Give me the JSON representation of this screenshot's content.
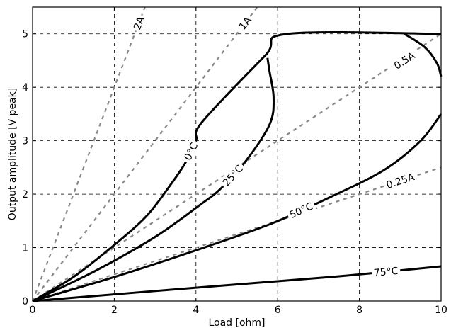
{
  "chart_data": {
    "type": "line",
    "title": "",
    "xlabel": "Load [ohm]",
    "ylabel": "Output amplitude [V peak]",
    "xlim": [
      0,
      10
    ],
    "ylim": [
      0,
      5.5
    ],
    "xticks": [
      0,
      2,
      4,
      6,
      8,
      10
    ],
    "yticks": [
      0,
      1,
      2,
      3,
      4,
      5
    ],
    "xtick_labels": [
      "0",
      "2",
      "4",
      "6",
      "8",
      "10"
    ],
    "ytick_labels": [
      "0",
      "1",
      "2",
      "3",
      "4",
      "5"
    ],
    "grid": true,
    "legend": "none",
    "current_lines": [
      {
        "name": "2A",
        "slope": 2.0,
        "label": "2A",
        "label_at": [
          2.6,
          5.2
        ],
        "color": "#888888"
      },
      {
        "name": "1A",
        "slope": 1.0,
        "label": "1A",
        "label_at": [
          5.2,
          5.2
        ],
        "color": "#888888"
      },
      {
        "name": "0.5A",
        "slope": 0.5,
        "label": "0.5A",
        "label_at": [
          9.1,
          4.5
        ],
        "color": "#888888"
      },
      {
        "name": "0.25A",
        "slope": 0.25,
        "label": "0.25A",
        "label_at": [
          9.0,
          2.25
        ],
        "color": "#888888"
      }
    ],
    "temperature_curves": [
      {
        "name": "0°C",
        "label": "0°C",
        "label_index": 5,
        "color": "#000000",
        "points": [
          [
            0,
            0
          ],
          [
            1,
            0.45
          ],
          [
            2,
            1.05
          ],
          [
            2.8,
            1.6
          ],
          [
            3.4,
            2.2
          ],
          [
            3.75,
            2.6
          ],
          [
            4.0,
            3.0
          ],
          [
            4.15,
            3.35
          ],
          [
            5.7,
            4.6
          ],
          [
            6.25,
            5.0
          ],
          [
            10,
            5.0
          ]
        ]
      },
      {
        "name": "25°C",
        "label": "25°C",
        "label_index": 4,
        "color": "#000000",
        "points": [
          [
            0,
            0
          ],
          [
            1.5,
            0.55
          ],
          [
            3,
            1.2
          ],
          [
            4.1,
            1.8
          ],
          [
            4.6,
            2.1
          ],
          [
            5.2,
            2.6
          ],
          [
            5.8,
            3.3
          ],
          [
            5.9,
            3.8
          ],
          [
            5.8,
            4.3
          ],
          [
            5.75,
            4.55
          ]
        ]
      },
      {
        "name": "50°C",
        "label": "50°C",
        "label_index": 3,
        "color": "#000000",
        "points": [
          [
            0,
            0
          ],
          [
            2,
            0.45
          ],
          [
            4,
            0.95
          ],
          [
            5.85,
            1.45
          ],
          [
            7.3,
            1.95
          ],
          [
            8.6,
            2.45
          ],
          [
            9.5,
            3.0
          ],
          [
            10,
            3.5
          ]
        ]
      },
      {
        "name": "75°C",
        "label": "75°C",
        "label_index": 2,
        "color": "#000000",
        "points": [
          [
            0,
            0
          ],
          [
            4,
            0.25
          ],
          [
            7.3,
            0.45
          ],
          [
            10,
            0.65
          ]
        ]
      },
      {
        "name": "50°C-top",
        "label": "",
        "color": "#000000",
        "points": [
          [
            9.1,
            5.0
          ],
          [
            9.6,
            4.75
          ],
          [
            9.9,
            4.45
          ],
          [
            10,
            4.2
          ]
        ]
      }
    ]
  }
}
